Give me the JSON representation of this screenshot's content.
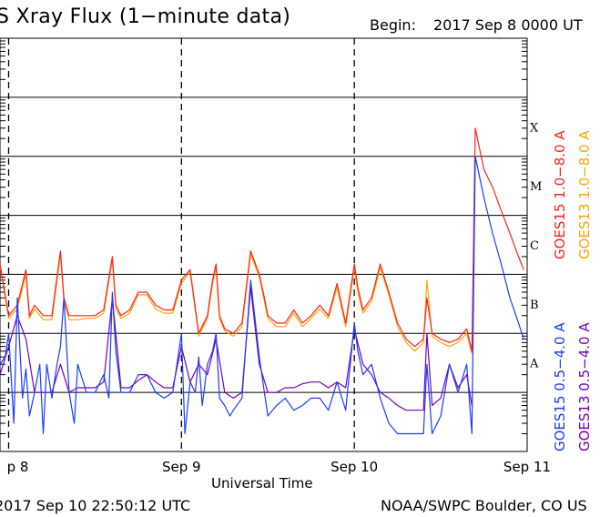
{
  "header": {
    "title": "S Xray Flux (1−minute data)",
    "begin_label": "Begin:",
    "begin_value": "2017 Sep 8 0000 UT"
  },
  "footer": {
    "left": "2017 Sep 10 22:50:12 UTC",
    "right": "NOAA/SWPC Boulder, CO US"
  },
  "colors": {
    "goes15_long": "#ff2020",
    "goes13_long": "#ffa500",
    "goes15_short": "#1a3cff",
    "goes13_short": "#7a00b4",
    "grid": "#000000"
  },
  "chart_data": {
    "type": "line",
    "title": "S Xray Flux (1−minute data)",
    "xlabel": "Universal Time",
    "ylabel": "",
    "x_unit": "days since 2017 Sep 8 0000 UT",
    "xlim": [
      -0.05,
      3.0
    ],
    "x_ticks": [
      {
        "value": 0,
        "label": "p 8"
      },
      {
        "value": 1,
        "label": "Sep 9"
      },
      {
        "value": 2,
        "label": "Sep 10"
      },
      {
        "value": 3,
        "label": "Sep 11"
      }
    ],
    "y_scale": "log",
    "ylim": [
      1e-09,
      0.01
    ],
    "flare_classes": [
      {
        "label": "X",
        "value": 0.0001
      },
      {
        "label": "M",
        "value": 1e-05
      },
      {
        "label": "C",
        "value": 1e-06
      },
      {
        "label": "B",
        "value": 1e-07
      },
      {
        "label": "A",
        "value": 1e-08
      }
    ],
    "legend_placement": "right",
    "series": [
      {
        "name": "GOES15 1.0−8.0 A",
        "color": "#ff2020",
        "x": [
          -0.05,
          0.0,
          0.05,
          0.1,
          0.12,
          0.15,
          0.2,
          0.25,
          0.3,
          0.32,
          0.35,
          0.4,
          0.45,
          0.5,
          0.55,
          0.6,
          0.62,
          0.65,
          0.7,
          0.75,
          0.8,
          0.85,
          0.9,
          0.95,
          1.0,
          1.05,
          1.1,
          1.15,
          1.18,
          1.2,
          1.22,
          1.25,
          1.3,
          1.35,
          1.4,
          1.45,
          1.48,
          1.5,
          1.55,
          1.6,
          1.65,
          1.7,
          1.75,
          1.8,
          1.85,
          1.9,
          1.95,
          2.0,
          2.02,
          2.05,
          2.1,
          2.15,
          2.2,
          2.25,
          2.3,
          2.35,
          2.4,
          2.42,
          2.45,
          2.5,
          2.55,
          2.6,
          2.65,
          2.68,
          2.7,
          2.75,
          2.8,
          2.85,
          2.9,
          2.95,
          2.98
        ],
        "y": [
          1.5e-06,
          2e-07,
          3e-07,
          1.2e-06,
          2e-07,
          3e-07,
          2e-07,
          2e-07,
          2.5e-06,
          4e-07,
          2e-07,
          2e-07,
          2e-07,
          2e-07,
          2.5e-07,
          2e-06,
          3e-07,
          2e-07,
          2.5e-07,
          5e-07,
          5e-07,
          3e-07,
          2.5e-07,
          2.5e-07,
          8e-07,
          1.2e-06,
          1e-07,
          2e-07,
          8e-07,
          1.5e-06,
          2e-07,
          1.2e-07,
          1e-07,
          1.5e-07,
          2.5e-06,
          1e-06,
          4e-07,
          2e-07,
          1.5e-07,
          1.5e-07,
          2.5e-07,
          1.5e-07,
          2e-07,
          3e-07,
          2e-07,
          7e-07,
          1.5e-07,
          1.5e-06,
          6e-07,
          2.5e-07,
          4e-07,
          1.5e-06,
          5e-07,
          1.5e-07,
          8e-08,
          6e-08,
          8e-08,
          4e-07,
          1e-07,
          8e-08,
          7e-08,
          8e-08,
          1.2e-07,
          5e-08,
          0.0003,
          6e-05,
          3e-05,
          1.2e-05,
          5e-06,
          2e-06,
          1.2e-06
        ]
      },
      {
        "name": "GOES13 1.0−8.0 A",
        "color": "#ffa500",
        "x": [
          -0.05,
          0.0,
          0.05,
          0.1,
          0.12,
          0.15,
          0.2,
          0.25,
          0.3,
          0.32,
          0.35,
          0.4,
          0.45,
          0.5,
          0.55,
          0.6,
          0.62,
          0.65,
          0.7,
          0.75,
          0.8,
          0.85,
          0.9,
          0.95,
          1.0,
          1.05,
          1.1,
          1.15,
          1.18,
          1.2,
          1.22,
          1.25,
          1.3,
          1.35,
          1.4,
          1.45,
          1.48,
          1.5,
          1.55,
          1.6,
          1.65,
          1.7,
          1.75,
          1.8,
          1.85,
          1.9,
          1.95,
          2.0,
          2.02,
          2.05,
          2.1,
          2.15,
          2.2,
          2.25,
          2.3,
          2.35,
          2.4,
          2.42,
          2.45,
          2.5,
          2.55,
          2.6,
          2.65,
          2.68
        ],
        "y": [
          1.4e-06,
          1.8e-07,
          2.6e-07,
          1e-06,
          1.8e-07,
          2.6e-07,
          1.7e-07,
          1.7e-07,
          2.2e-06,
          3.5e-07,
          1.7e-07,
          1.7e-07,
          1.8e-07,
          1.8e-07,
          2.2e-07,
          1.8e-06,
          2.6e-07,
          1.8e-07,
          2.2e-07,
          4.5e-07,
          4.5e-07,
          2.6e-07,
          2.2e-07,
          2.2e-07,
          7e-07,
          1.1e-06,
          9e-08,
          1.8e-07,
          7e-07,
          1.3e-06,
          1.8e-07,
          1.1e-07,
          9e-08,
          1.3e-07,
          2.2e-06,
          9e-07,
          3.5e-07,
          1.8e-07,
          1.3e-07,
          1.3e-07,
          2.2e-07,
          1.3e-07,
          1.8e-07,
          2.6e-07,
          1.8e-07,
          6e-07,
          1.3e-07,
          1.3e-06,
          5e-07,
          2.2e-07,
          3.5e-07,
          1.3e-06,
          4.5e-07,
          1.3e-07,
          7e-08,
          5e-08,
          7e-08,
          8e-07,
          9e-08,
          7e-08,
          6e-08,
          7e-08,
          1e-07,
          4.5e-08
        ]
      },
      {
        "name": "GOES15 0.5−4.0 A",
        "color": "#1a3cff",
        "x": [
          -0.05,
          -0.02,
          0.0,
          0.03,
          0.05,
          0.08,
          0.1,
          0.12,
          0.15,
          0.18,
          0.2,
          0.22,
          0.25,
          0.28,
          0.3,
          0.32,
          0.35,
          0.38,
          0.4,
          0.45,
          0.5,
          0.55,
          0.58,
          0.6,
          0.62,
          0.65,
          0.7,
          0.75,
          0.8,
          0.85,
          0.9,
          0.95,
          1.0,
          1.02,
          1.05,
          1.08,
          1.1,
          1.12,
          1.15,
          1.18,
          1.2,
          1.22,
          1.25,
          1.28,
          1.3,
          1.35,
          1.4,
          1.45,
          1.48,
          1.5,
          1.55,
          1.6,
          1.65,
          1.7,
          1.75,
          1.8,
          1.85,
          1.9,
          1.95,
          2.0,
          2.02,
          2.05,
          2.1,
          2.15,
          2.2,
          2.25,
          2.3,
          2.35,
          2.4,
          2.42,
          2.45,
          2.5,
          2.55,
          2.6,
          2.65,
          2.68,
          2.7,
          2.75,
          2.8,
          2.85,
          2.9,
          2.95,
          2.98
        ],
        "y": [
          3e-08,
          4e-08,
          1e-07,
          3e-09,
          4e-07,
          8e-09,
          2.5e-08,
          4e-09,
          1e-08,
          3e-08,
          2e-09,
          3e-08,
          8e-09,
          3e-08,
          6e-08,
          4e-07,
          1e-08,
          3e-09,
          3e-08,
          1e-08,
          1e-08,
          2e-08,
          8e-09,
          5e-07,
          5e-08,
          1e-08,
          1e-08,
          2e-08,
          2e-08,
          1e-08,
          8e-09,
          1e-08,
          1e-07,
          2e-09,
          1.5e-08,
          1e-08,
          4e-08,
          6e-09,
          3e-08,
          5e-08,
          1e-07,
          8e-09,
          6e-09,
          4e-09,
          5e-09,
          8e-09,
          8e-07,
          4e-08,
          1e-08,
          4e-09,
          6e-09,
          8e-09,
          5e-09,
          6e-09,
          8e-09,
          8e-09,
          5e-09,
          1.5e-08,
          5e-09,
          1.5e-07,
          5e-08,
          2e-08,
          3e-08,
          8e-09,
          3e-09,
          2e-09,
          2e-09,
          2e-09,
          2e-09,
          3e-08,
          2e-09,
          4e-09,
          3e-08,
          1e-08,
          3e-08,
          2e-09,
          0.0001,
          2e-05,
          5e-06,
          1.5e-06,
          4e-07,
          1.5e-07,
          8e-08
        ]
      },
      {
        "name": "GOES13 0.5−4.0 A",
        "color": "#7a00b4",
        "x": [
          -0.05,
          0.0,
          0.05,
          0.1,
          0.15,
          0.2,
          0.25,
          0.3,
          0.35,
          0.4,
          0.45,
          0.5,
          0.55,
          0.6,
          0.65,
          0.7,
          0.75,
          0.8,
          0.85,
          0.9,
          0.95,
          1.0,
          1.05,
          1.1,
          1.15,
          1.2,
          1.25,
          1.3,
          1.35,
          1.4,
          1.45,
          1.5,
          1.55,
          1.6,
          1.65,
          1.7,
          1.75,
          1.8,
          1.85,
          1.9,
          1.95,
          2.0,
          2.05,
          2.1,
          2.15,
          2.2,
          2.25,
          2.3,
          2.35,
          2.4,
          2.42,
          2.45,
          2.5,
          2.55,
          2.6,
          2.65,
          2.68
        ],
        "y": [
          2e-08,
          6e-08,
          2e-07,
          8e-08,
          1e-08,
          1e-08,
          1e-08,
          3e-08,
          1e-08,
          1.2e-08,
          1.2e-08,
          1.2e-08,
          1.5e-08,
          4e-07,
          1.2e-08,
          1.2e-08,
          1.6e-08,
          2e-08,
          1.5e-08,
          1.2e-08,
          1.2e-08,
          6e-08,
          1.5e-08,
          3e-08,
          2e-08,
          8e-08,
          1e-08,
          8e-09,
          1e-08,
          6e-07,
          3e-08,
          1e-08,
          1e-08,
          1.2e-08,
          1.2e-08,
          1.4e-08,
          1.5e-08,
          1.5e-08,
          1.2e-08,
          1.5e-08,
          1.2e-08,
          1.2e-07,
          3e-08,
          2e-08,
          1e-08,
          8e-09,
          6e-09,
          5e-09,
          5e-09,
          5e-09,
          1e-07,
          6e-09,
          8e-09,
          3e-08,
          1.2e-08,
          2e-08,
          6e-09
        ]
      }
    ]
  }
}
